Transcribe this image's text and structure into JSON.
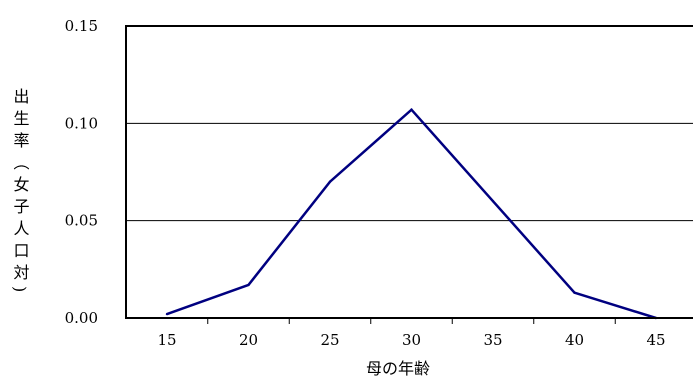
{
  "chart_data": {
    "type": "line",
    "xlabel": "母の年齢",
    "ylabel": "出生率（女子人口対)",
    "x": [
      15,
      20,
      25,
      30,
      35,
      40,
      45
    ],
    "x_tick_labels": [
      "15",
      "20",
      "25",
      "30",
      "35",
      "40",
      "45"
    ],
    "series": [
      {
        "values": [
          0.002,
          0.017,
          0.07,
          0.107,
          0.06,
          0.013,
          0.0
        ]
      }
    ],
    "ylim": [
      0.0,
      0.15
    ],
    "y_ticks": [
      0.0,
      0.05,
      0.1,
      0.15
    ],
    "y_tick_labels": [
      "0.00",
      "0.05",
      "0.10",
      "0.15"
    ],
    "grid": "horizontal",
    "line_color": "#000080",
    "legend": "none"
  }
}
